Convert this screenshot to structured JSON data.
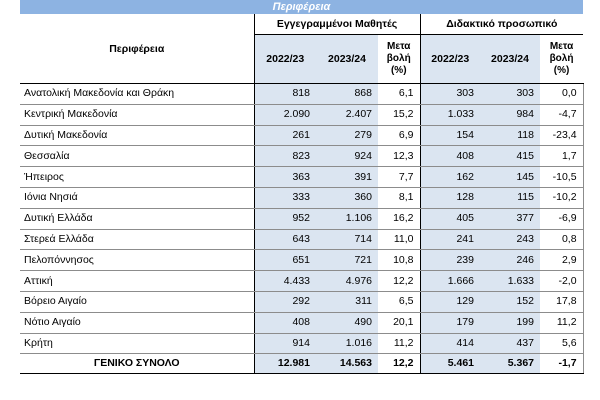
{
  "title": "Περιφέρεια",
  "header": {
    "region": "Περιφέρεια",
    "group_students": "Εγγεγραμμένοι Μαθητές",
    "group_staff": "Διδακτικό προσωπικό",
    "year1": "2022/23",
    "year2": "2023/24",
    "change": "Μετα\nβολή\n(%)"
  },
  "rows": [
    {
      "name": "Ανατολική Μακεδονία και Θράκη",
      "s1": "818",
      "s2": "868",
      "sc": "6,1",
      "t1": "303",
      "t2": "303",
      "tc": "0,0"
    },
    {
      "name": "Κεντρική Μακεδονία",
      "s1": "2.090",
      "s2": "2.407",
      "sc": "15,2",
      "t1": "1.033",
      "t2": "984",
      "tc": "-4,7"
    },
    {
      "name": "Δυτική Μακεδονία",
      "s1": "261",
      "s2": "279",
      "sc": "6,9",
      "t1": "154",
      "t2": "118",
      "tc": "-23,4"
    },
    {
      "name": "Θεσσαλία",
      "s1": "823",
      "s2": "924",
      "sc": "12,3",
      "t1": "408",
      "t2": "415",
      "tc": "1,7"
    },
    {
      "name": "Ήπειρος",
      "s1": "363",
      "s2": "391",
      "sc": "7,7",
      "t1": "162",
      "t2": "145",
      "tc": "-10,5"
    },
    {
      "name": "Ιόνια Νησιά",
      "s1": "333",
      "s2": "360",
      "sc": "8,1",
      "t1": "128",
      "t2": "115",
      "tc": "-10,2"
    },
    {
      "name": "Δυτική Ελλάδα",
      "s1": "952",
      "s2": "1.106",
      "sc": "16,2",
      "t1": "405",
      "t2": "377",
      "tc": "-6,9"
    },
    {
      "name": "Στερεά Ελλάδα",
      "s1": "643",
      "s2": "714",
      "sc": "11,0",
      "t1": "241",
      "t2": "243",
      "tc": "0,8"
    },
    {
      "name": "Πελοπόννησος",
      "s1": "651",
      "s2": "721",
      "sc": "10,8",
      "t1": "239",
      "t2": "246",
      "tc": "2,9"
    },
    {
      "name": "Αττική",
      "s1": "4.433",
      "s2": "4.976",
      "sc": "12,2",
      "t1": "1.666",
      "t2": "1.633",
      "tc": "-2,0"
    },
    {
      "name": "Βόρειο Αιγαίο",
      "s1": "292",
      "s2": "311",
      "sc": "6,5",
      "t1": "129",
      "t2": "152",
      "tc": "17,8"
    },
    {
      "name": "Νότιο Αιγαίο",
      "s1": "408",
      "s2": "490",
      "sc": "20,1",
      "t1": "179",
      "t2": "199",
      "tc": "11,2"
    },
    {
      "name": "Κρήτη",
      "s1": "914",
      "s2": "1.016",
      "sc": "11,2",
      "t1": "414",
      "t2": "437",
      "tc": "5,6"
    }
  ],
  "total": {
    "name": "ΓΕΝΙΚΟ ΣΥΝΟΛΟ",
    "s1": "12.981",
    "s2": "14.563",
    "sc": "12,2",
    "t1": "5.461",
    "t2": "5.367",
    "tc": "-1,7"
  }
}
